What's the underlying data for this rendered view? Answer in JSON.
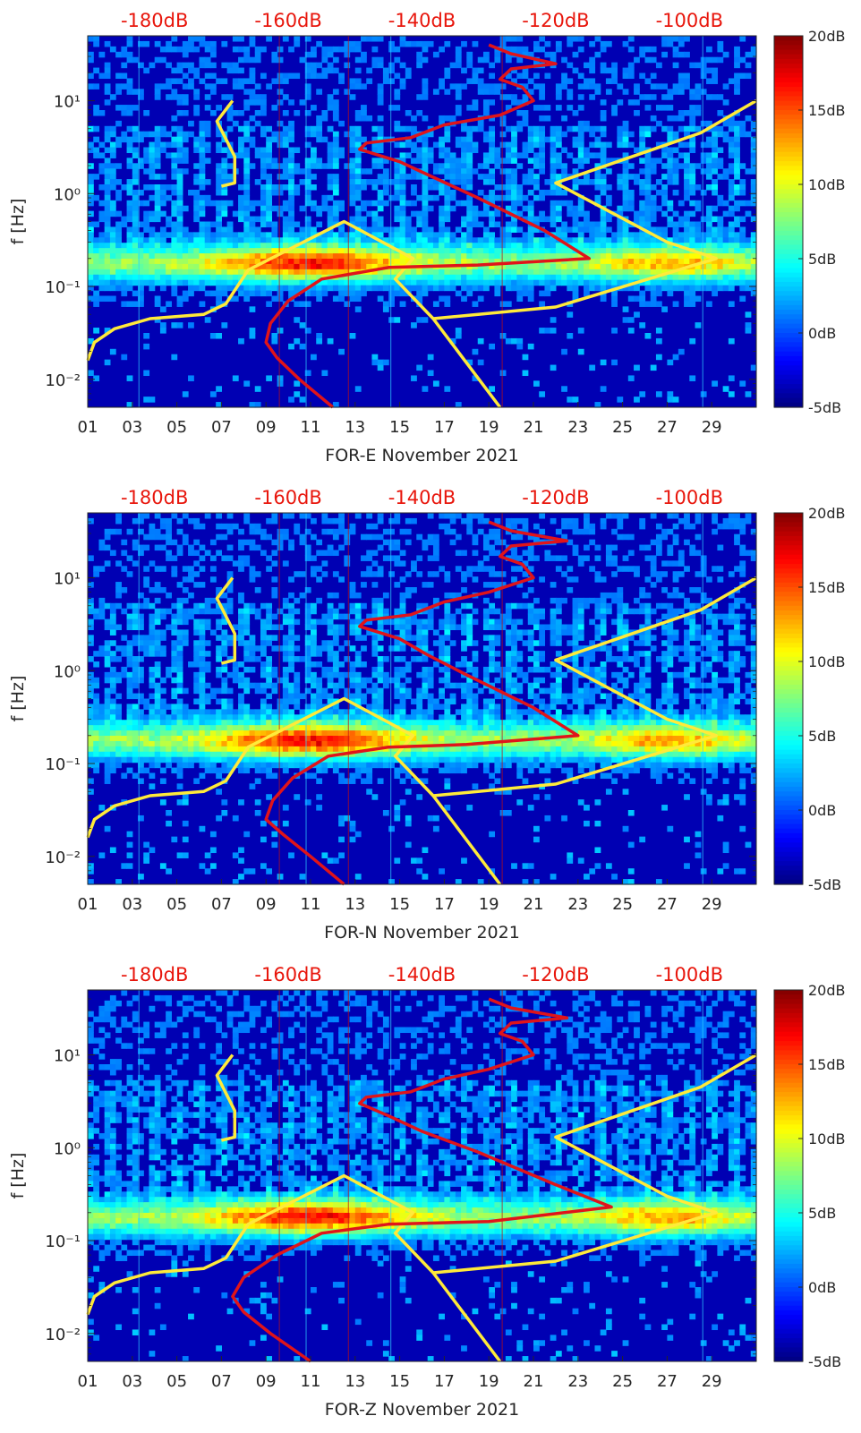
{
  "colors": {
    "jet_low": "#00008f",
    "jet_high": "#800000",
    "yellow_curve": "#ffea3a",
    "red_curve": "#e0141a",
    "db_scale_text": "#e8160c"
  },
  "shared": {
    "ylabel": "f [Hz]",
    "yticks": [
      "10⁻²",
      "10⁻¹",
      "10⁰",
      "10¹"
    ],
    "xticks": [
      "01",
      "03",
      "05",
      "07",
      "09",
      "11",
      "13",
      "15",
      "17",
      "19",
      "21",
      "23",
      "25",
      "27",
      "29"
    ],
    "top_db_labels": [
      "-180dB",
      "-160dB",
      "-140dB",
      "-120dB",
      "-100dB"
    ],
    "colorbar_labels": [
      "20dB",
      "15dB",
      "10dB",
      "5dB",
      "0dB",
      "-5dB"
    ]
  },
  "chart_data": [
    {
      "type": "heatmap",
      "xlabel": "FOR-E November 2021",
      "ylabel": "f [Hz]",
      "xlim": [
        1,
        31
      ],
      "ylim": [
        0.005,
        50
      ],
      "yscale": "log",
      "color_range_db": [
        -5,
        20
      ],
      "top_axis_db_range": [
        -190,
        -90
      ],
      "yellow_curve": {
        "x_day": [
          1,
          1.3,
          2.2,
          3.8,
          6.2,
          7.2,
          8.2,
          12.5,
          15.6,
          14.8,
          16.5,
          19.5
        ],
        "f_hz": [
          0.016,
          0.025,
          0.035,
          0.045,
          0.05,
          0.065,
          0.15,
          0.5,
          0.2,
          0.12,
          0.045,
          0.005
        ]
      },
      "yellow_curve_right": {
        "x_day": [
          16.5,
          22,
          29.2,
          27,
          22,
          28.5,
          31
        ],
        "f_hz": [
          0.045,
          0.06,
          0.2,
          0.3,
          1.3,
          4.5,
          10
        ]
      },
      "yellow_curve_left": {
        "x_day": [
          7.5,
          6.8,
          7.6,
          7.6,
          7
        ],
        "f_hz": [
          10,
          6,
          2.5,
          1.3,
          1.2
        ]
      },
      "red_curve": {
        "x_day": [
          12.0,
          10.5,
          9.5,
          9.0,
          9.2,
          10.0,
          11.5,
          14.5,
          18.5,
          23.5,
          21.5,
          18.5,
          16.5,
          15.0,
          13.2,
          13.5,
          15.5,
          17.0,
          19.5,
          21.0,
          20.5,
          19.5,
          20.0,
          22.0,
          20.0,
          19.0
        ],
        "f_hz": [
          0.005,
          0.01,
          0.017,
          0.025,
          0.04,
          0.07,
          0.12,
          0.16,
          0.17,
          0.2,
          0.4,
          0.9,
          1.5,
          2.2,
          3,
          3.5,
          4,
          5.5,
          7,
          10,
          14,
          17,
          22,
          25,
          32,
          40
        ]
      }
    },
    {
      "type": "heatmap",
      "xlabel": "FOR-N November 2021",
      "ylabel": "f [Hz]",
      "xlim": [
        1,
        31
      ],
      "ylim": [
        0.005,
        50
      ],
      "yscale": "log",
      "color_range_db": [
        -5,
        20
      ],
      "top_axis_db_range": [
        -190,
        -90
      ],
      "yellow_curve": {
        "x_day": [
          1,
          1.3,
          2.2,
          3.8,
          6.2,
          7.2,
          8.2,
          12.5,
          15.6,
          14.8,
          16.5,
          19.5
        ],
        "f_hz": [
          0.016,
          0.025,
          0.035,
          0.045,
          0.05,
          0.065,
          0.15,
          0.5,
          0.2,
          0.12,
          0.045,
          0.005
        ]
      },
      "yellow_curve_right": {
        "x_day": [
          16.5,
          22,
          29.2,
          27,
          22,
          28.5,
          31
        ],
        "f_hz": [
          0.045,
          0.06,
          0.2,
          0.3,
          1.3,
          4.5,
          10
        ]
      },
      "yellow_curve_left": {
        "x_day": [
          7.5,
          6.8,
          7.6,
          7.6,
          7
        ],
        "f_hz": [
          10,
          6,
          2.5,
          1.3,
          1.2
        ]
      },
      "red_curve": {
        "x_day": [
          12.5,
          11.0,
          9.8,
          9.0,
          9.3,
          10.2,
          11.8,
          14.5,
          18.0,
          23.0,
          21.0,
          18.0,
          16.2,
          15.0,
          13.2,
          13.5,
          15.5,
          17.0,
          19.0,
          21.0,
          20.5,
          19.5,
          20.0,
          22.5,
          20.0,
          19.0
        ],
        "f_hz": [
          0.005,
          0.01,
          0.017,
          0.025,
          0.04,
          0.07,
          0.12,
          0.15,
          0.16,
          0.2,
          0.4,
          0.9,
          1.5,
          2.2,
          3,
          3.5,
          4,
          5.5,
          7,
          10,
          14,
          17,
          22,
          25,
          32,
          40
        ]
      }
    },
    {
      "type": "heatmap",
      "xlabel": "FOR-Z November 2021",
      "ylabel": "f [Hz]",
      "xlim": [
        1,
        31
      ],
      "ylim": [
        0.005,
        50
      ],
      "yscale": "log",
      "color_range_db": [
        -5,
        20
      ],
      "top_axis_db_range": [
        -190,
        -90
      ],
      "yellow_curve": {
        "x_day": [
          1,
          1.3,
          2.2,
          3.8,
          6.2,
          7.2,
          8.2,
          12.5,
          15.6,
          14.8,
          16.5,
          19.5
        ],
        "f_hz": [
          0.016,
          0.025,
          0.035,
          0.045,
          0.05,
          0.065,
          0.15,
          0.5,
          0.2,
          0.12,
          0.045,
          0.005
        ]
      },
      "yellow_curve_right": {
        "x_day": [
          16.5,
          22,
          29.2,
          27,
          22,
          28.5,
          31
        ],
        "f_hz": [
          0.045,
          0.06,
          0.2,
          0.3,
          1.3,
          4.5,
          10
        ]
      },
      "yellow_curve_left": {
        "x_day": [
          7.5,
          6.8,
          7.6,
          7.6,
          7
        ],
        "f_hz": [
          10,
          6,
          2.5,
          1.3,
          1.2
        ]
      },
      "red_curve": {
        "x_day": [
          11.0,
          9.2,
          8.0,
          7.5,
          8.0,
          9.5,
          11.5,
          14.5,
          19.0,
          24.5,
          22.0,
          18.5,
          16.0,
          14.5,
          13.2,
          13.5,
          15.5,
          17.0,
          19.0,
          21.0,
          20.5,
          19.5,
          20.0,
          22.5,
          20.0,
          19.0
        ],
        "f_hz": [
          0.005,
          0.01,
          0.017,
          0.025,
          0.04,
          0.07,
          0.12,
          0.15,
          0.16,
          0.23,
          0.4,
          0.9,
          1.5,
          2.2,
          3,
          3.5,
          4,
          5.5,
          7,
          10,
          14,
          17,
          22,
          25,
          32,
          40
        ]
      }
    }
  ]
}
